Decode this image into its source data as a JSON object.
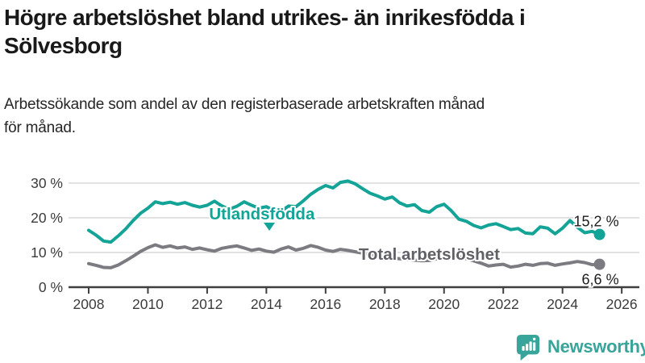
{
  "header": {
    "title_lines": [
      "Högre arbetslöshet bland utrikes- än inrikesfödda i",
      "Sölvesborg"
    ],
    "subtitle_lines": [
      "Arbetssökande som andel av den registerbaserade arbetskraften månad",
      "för månad."
    ]
  },
  "branding": {
    "logo_text": "Newsworthy",
    "logo_icon": "speech-bubble-with-bar-chart-and-exclamation",
    "logo_color": "#38a49a"
  },
  "chart_data": {
    "type": "line",
    "title": "Högre arbetslöshet bland utrikes- än inrikesfödda i Sölvesborg",
    "subtitle": "Arbetssökande som andel av den registerbaserade arbetskraften månad för månad.",
    "xlabel": "",
    "ylabel": "",
    "xlim": [
      2007.3,
      2026.6
    ],
    "ylim": [
      0,
      33
    ],
    "grid": "horizontal-only",
    "grid_color": "#d8d8d8",
    "axis_color": "#3f3f3f",
    "tick_text_color": "#3b3b3b",
    "end_label_color": "#1c1c1c",
    "xticks": [
      2008,
      2010,
      2012,
      2014,
      2016,
      2018,
      2020,
      2022,
      2024,
      2026
    ],
    "yticks": [
      {
        "value": 0,
        "label": "0 %"
      },
      {
        "value": 10,
        "label": "10 %"
      },
      {
        "value": 20,
        "label": "20 %"
      },
      {
        "value": 30,
        "label": "30 %"
      }
    ],
    "x": [
      2008,
      2008.25,
      2008.5,
      2008.75,
      2009,
      2009.25,
      2009.5,
      2009.75,
      2010,
      2010.25,
      2010.5,
      2010.75,
      2011,
      2011.25,
      2011.5,
      2011.75,
      2012,
      2012.25,
      2012.5,
      2012.75,
      2013,
      2013.25,
      2013.5,
      2013.75,
      2014,
      2014.25,
      2014.5,
      2014.75,
      2015,
      2015.25,
      2015.5,
      2015.75,
      2016,
      2016.25,
      2016.5,
      2016.75,
      2017,
      2017.25,
      2017.5,
      2017.75,
      2018,
      2018.25,
      2018.5,
      2018.75,
      2019,
      2019.25,
      2019.5,
      2019.75,
      2020,
      2020.25,
      2020.5,
      2020.75,
      2021,
      2021.25,
      2021.5,
      2021.75,
      2022,
      2022.25,
      2022.5,
      2022.75,
      2023,
      2023.25,
      2023.5,
      2023.75,
      2024,
      2024.25,
      2024.5,
      2024.75,
      2025,
      2025.25
    ],
    "series": [
      {
        "id": "total-arbetsloshet",
        "name": "Total arbetslöshet",
        "color": "#7b7b81",
        "label_color": "#606067",
        "end_label": "6,6 %",
        "end_label_position": "below-right",
        "annotation": {
          "text": "Total arbetslöshet",
          "x": 2019.5,
          "y": 9.5,
          "caret": null
        },
        "values": [
          6.8,
          6.3,
          5.7,
          5.6,
          6.4,
          7.6,
          8.9,
          10.3,
          11.4,
          12.2,
          11.5,
          11.9,
          11.3,
          11.6,
          10.9,
          11.3,
          10.8,
          10.4,
          11.2,
          11.6,
          11.9,
          11.3,
          10.6,
          11.0,
          10.4,
          10.1,
          11.0,
          11.6,
          10.7,
          11.2,
          12.0,
          11.5,
          10.7,
          10.3,
          10.9,
          10.6,
          10.2,
          9.8,
          9.4,
          9.0,
          8.7,
          8.4,
          8.2,
          8.0,
          7.8,
          7.6,
          7.7,
          8.2,
          8.6,
          9.2,
          8.8,
          8.2,
          7.6,
          6.9,
          6.1,
          6.4,
          6.6,
          5.8,
          6.1,
          6.6,
          6.3,
          6.8,
          6.9,
          6.3,
          6.7,
          7.0,
          7.4,
          7.1,
          6.5,
          6.6
        ]
      },
      {
        "id": "utlandsfodda",
        "name": "Utlandsfödda",
        "color": "#13a497",
        "label_color": "#13a497",
        "end_label": "15,2 %",
        "end_label_position": "above-right",
        "annotation": {
          "text": "Utlandsfödda",
          "x": 2013.85,
          "y": 21.2,
          "caret": {
            "x": 2014.1,
            "y": 18.6
          }
        },
        "values": [
          16.4,
          15.0,
          13.3,
          13.0,
          14.8,
          16.8,
          19.2,
          21.3,
          22.8,
          24.6,
          24.1,
          24.5,
          23.9,
          24.4,
          23.6,
          23.1,
          23.6,
          24.8,
          23.4,
          22.5,
          23.3,
          24.6,
          23.6,
          22.8,
          23.2,
          22.1,
          21.9,
          23.4,
          23.2,
          24.9,
          26.8,
          28.2,
          29.3,
          28.6,
          30.2,
          30.6,
          29.8,
          28.4,
          27.1,
          26.3,
          25.4,
          26.0,
          24.3,
          23.4,
          23.8,
          22.1,
          21.6,
          23.2,
          23.9,
          22.0,
          19.6,
          19.0,
          17.8,
          17.1,
          17.9,
          18.3,
          17.5,
          16.6,
          16.9,
          15.6,
          15.4,
          17.4,
          17.0,
          15.4,
          17.0,
          19.2,
          17.3,
          15.7,
          16.1,
          15.2
        ]
      }
    ]
  }
}
